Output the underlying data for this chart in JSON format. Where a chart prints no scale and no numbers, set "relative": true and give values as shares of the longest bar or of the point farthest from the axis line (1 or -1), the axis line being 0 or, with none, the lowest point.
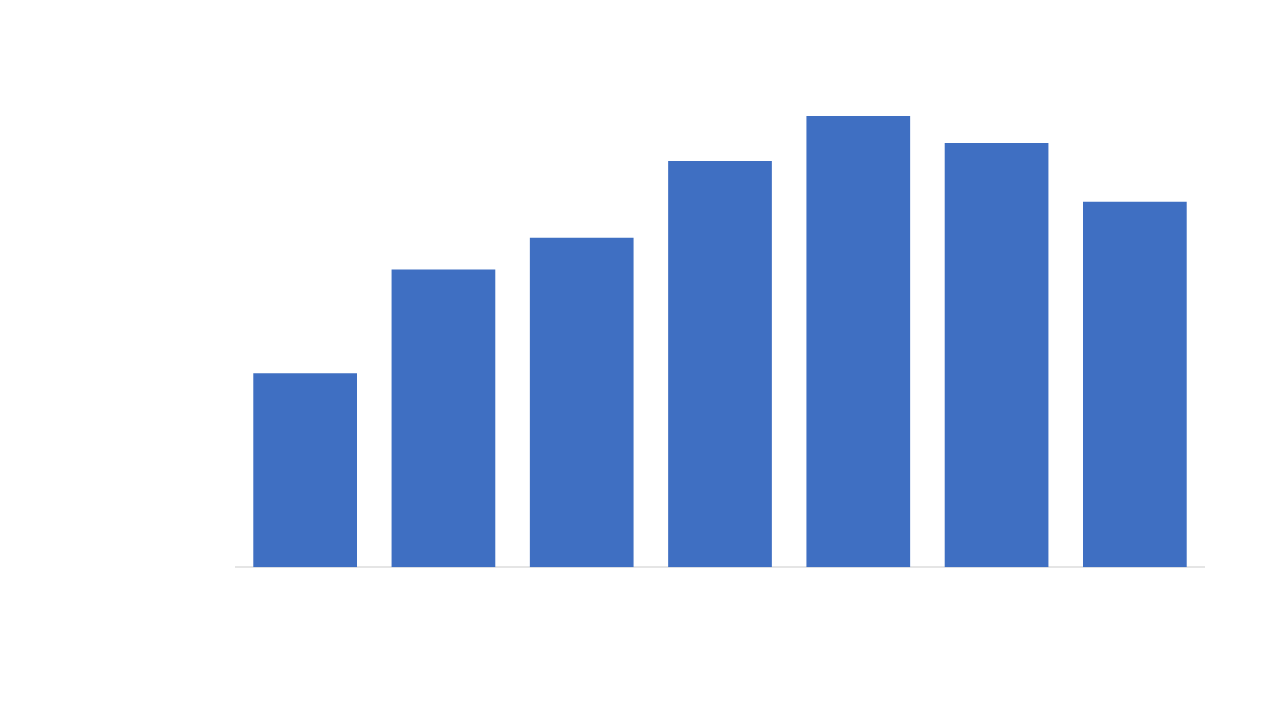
{
  "chart_data": {
    "type": "bar",
    "relative": true,
    "categories": [
      null,
      null,
      null,
      null,
      null,
      null,
      null
    ],
    "values": [
      0.43,
      0.66,
      0.73,
      0.9,
      1,
      0.94,
      0.81
    ],
    "color": "#3f6fc2",
    "legend": false
  }
}
